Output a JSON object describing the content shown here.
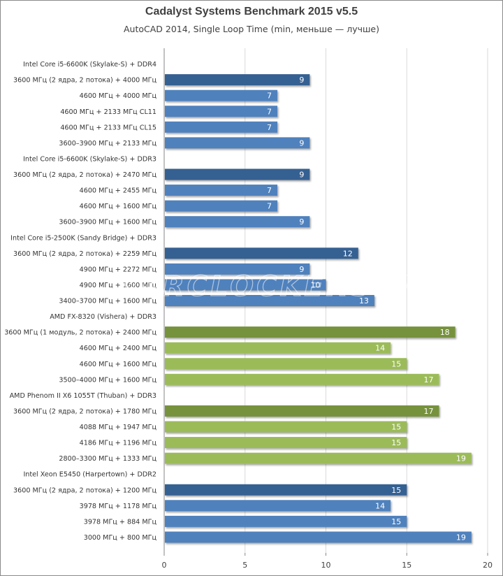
{
  "chart_data": {
    "type": "bar",
    "orientation": "horizontal",
    "title": "Cadalyst Systems Benchmark 2015 v5.5",
    "subtitle": "AutoCAD 2014, Single Loop Time (min, меньше — лучше)",
    "xlabel": "",
    "ylabel": "",
    "xlim": [
      0,
      20
    ],
    "x_ticks": [
      "0",
      "5",
      "10",
      "15",
      "20"
    ],
    "grid": true,
    "legend": "none",
    "watermark": "OVERCLOCKERS.UA",
    "colors": {
      "intel_dark": "#366092",
      "intel_light": "#4F81BD",
      "amd_dark": "#76923C",
      "amd_light": "#9BBB59"
    },
    "rows": [
      {
        "label": "Intel Core i5-6600K (Skylake-S) + DDR4",
        "header": true
      },
      {
        "label": "3600 МГц (2 ядра, 2 потока) + 4000 МГц",
        "value": 9,
        "color": "intel_dark"
      },
      {
        "label": "4600 МГц + 4000 МГц",
        "value": 7,
        "color": "intel_light"
      },
      {
        "label": "4600 МГц + 2133 МГц CL11",
        "value": 7,
        "color": "intel_light"
      },
      {
        "label": "4600 МГц + 2133 МГц CL15",
        "value": 7,
        "color": "intel_light"
      },
      {
        "label": "3600–3900 МГц + 2133 МГц",
        "value": 9,
        "color": "intel_light"
      },
      {
        "label": "Intel Core i5-6600K (Skylake-S) + DDR3",
        "header": true
      },
      {
        "label": "3600 МГц (2 ядра, 2 потока) + 2470 МГц",
        "value": 9,
        "color": "intel_dark"
      },
      {
        "label": "4600 МГц + 2455 МГц",
        "value": 7,
        "color": "intel_light"
      },
      {
        "label": "4600 МГц + 1600 МГц",
        "value": 7,
        "color": "intel_light"
      },
      {
        "label": "3600–3900 МГц + 1600 МГц",
        "value": 9,
        "color": "intel_light"
      },
      {
        "label": "Intel Core i5-2500K (Sandy Bridge) + DDR3",
        "header": true
      },
      {
        "label": "3600 МГц (2 ядра, 2 потока) + 2259 МГц",
        "value": 12,
        "color": "intel_dark"
      },
      {
        "label": "4900 МГц + 2272 МГц",
        "value": 9,
        "color": "intel_light"
      },
      {
        "label": "4900 МГц + 1600 МГц",
        "value": 10,
        "color": "intel_light"
      },
      {
        "label": "3400–3700 МГц + 1600 МГц",
        "value": 13,
        "color": "intel_light"
      },
      {
        "label": "AMD FX-8320 (Vishera) + DDR3",
        "header": true
      },
      {
        "label": "3600 МГц (1 модуль, 2 потока) + 2400 МГц",
        "value": 18,
        "color": "amd_dark"
      },
      {
        "label": "4600 МГц + 2400 МГц",
        "value": 14,
        "color": "amd_light"
      },
      {
        "label": "4600 МГц + 1600 МГц",
        "value": 15,
        "color": "amd_light"
      },
      {
        "label": "3500–4000 МГц + 1600 МГц",
        "value": 17,
        "color": "amd_light"
      },
      {
        "label": "AMD Phenom II X6 1055T (Thuban) + DDR3",
        "header": true
      },
      {
        "label": "3600 МГц (2 ядра, 2 потока) + 1780 МГц",
        "value": 17,
        "color": "amd_dark"
      },
      {
        "label": "4088 МГц + 1947 МГц",
        "value": 15,
        "color": "amd_light"
      },
      {
        "label": "4186 МГц + 1196 МГц",
        "value": 15,
        "color": "amd_light"
      },
      {
        "label": "2800–3300 МГц + 1333 МГц",
        "value": 19,
        "color": "amd_light"
      },
      {
        "label": "Intel Xeon E5450 (Harpertown) + DDR2",
        "header": true
      },
      {
        "label": "3600 МГц (2 ядра, 2 потока) + 1200 МГц",
        "value": 15,
        "color": "intel_dark"
      },
      {
        "label": "3978 МГц + 1178 МГц",
        "value": 14,
        "color": "intel_light"
      },
      {
        "label": "3978 МГц + 884 МГц",
        "value": 15,
        "color": "intel_light"
      },
      {
        "label": "3000 МГц + 800 МГц",
        "value": 19,
        "color": "intel_light"
      }
    ]
  }
}
